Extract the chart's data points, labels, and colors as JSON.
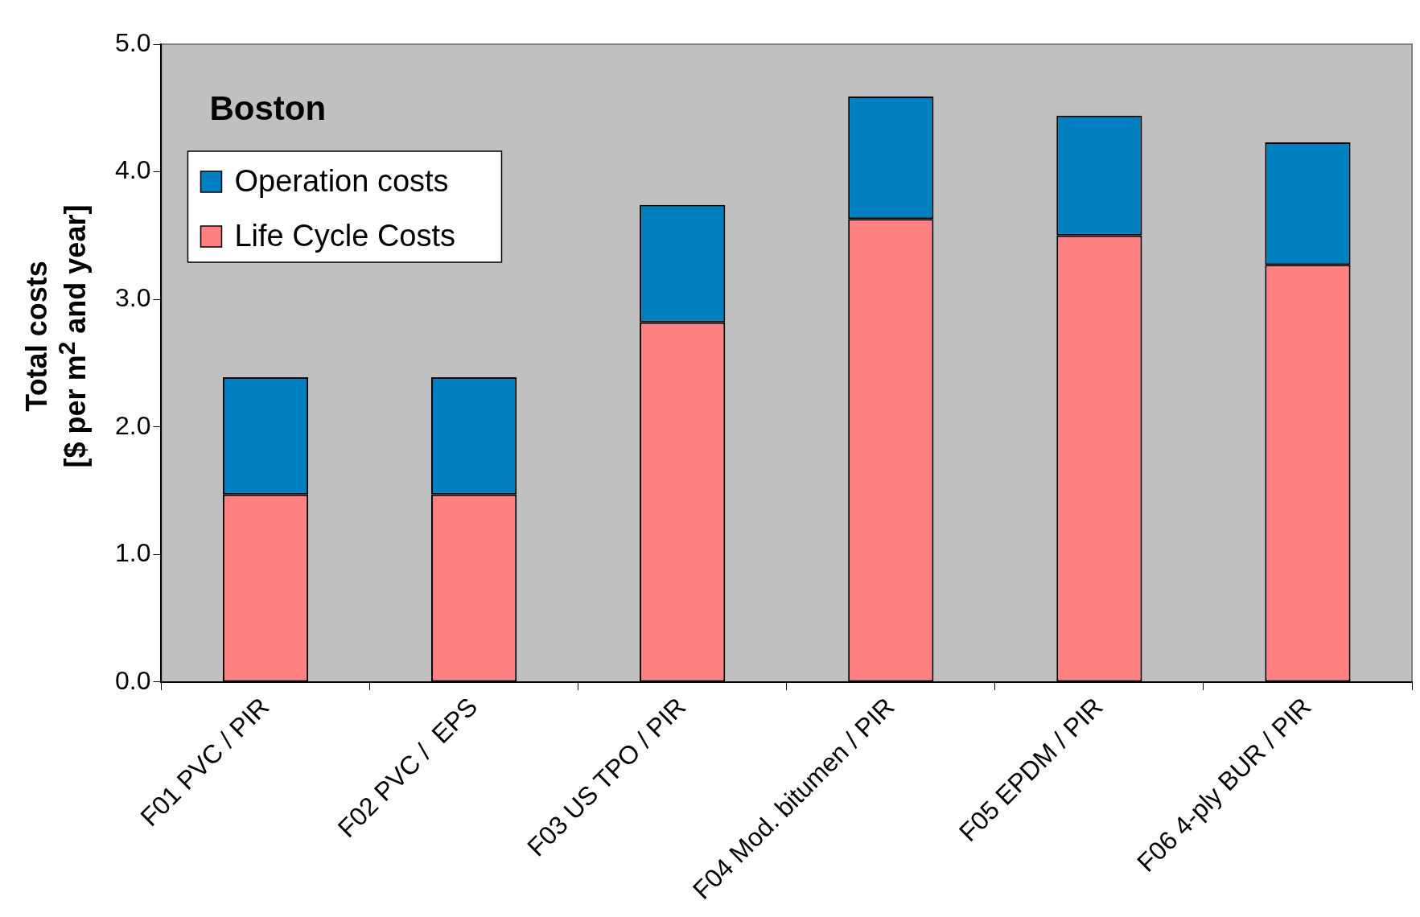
{
  "chart_data": {
    "type": "bar",
    "title": "Boston",
    "ylabel": "Total costs\n[$ per m$^{2}$ and year]",
    "categories": [
      "F01 PVC / PIR",
      "F02 PVC /  EPS",
      "F03 US TPO / PIR",
      "F04 Mod. bitumen / PIR",
      "F05 EPDM / PIR",
      "F06 4-ply BUR / PIR"
    ],
    "stacked": true,
    "series": [
      {
        "name": "Life Cycle Costs",
        "color": "#ff8080",
        "values": [
          1.47,
          1.47,
          2.82,
          3.63,
          3.5,
          3.27
        ]
      },
      {
        "name": "Operation costs",
        "color": "#0080c0",
        "values": [
          0.92,
          0.92,
          0.92,
          0.96,
          0.94,
          0.96
        ]
      }
    ],
    "ylim": [
      0,
      5
    ],
    "yticks": [
      {
        "value": 0,
        "label": "0.0"
      },
      {
        "value": 1,
        "label": "1.0"
      },
      {
        "value": 2,
        "label": "2.0"
      },
      {
        "value": 3,
        "label": "3.0"
      },
      {
        "value": 4,
        "label": "4.0"
      },
      {
        "value": 5,
        "label": "5.0"
      }
    ],
    "grid": false,
    "legend": "top left"
  }
}
